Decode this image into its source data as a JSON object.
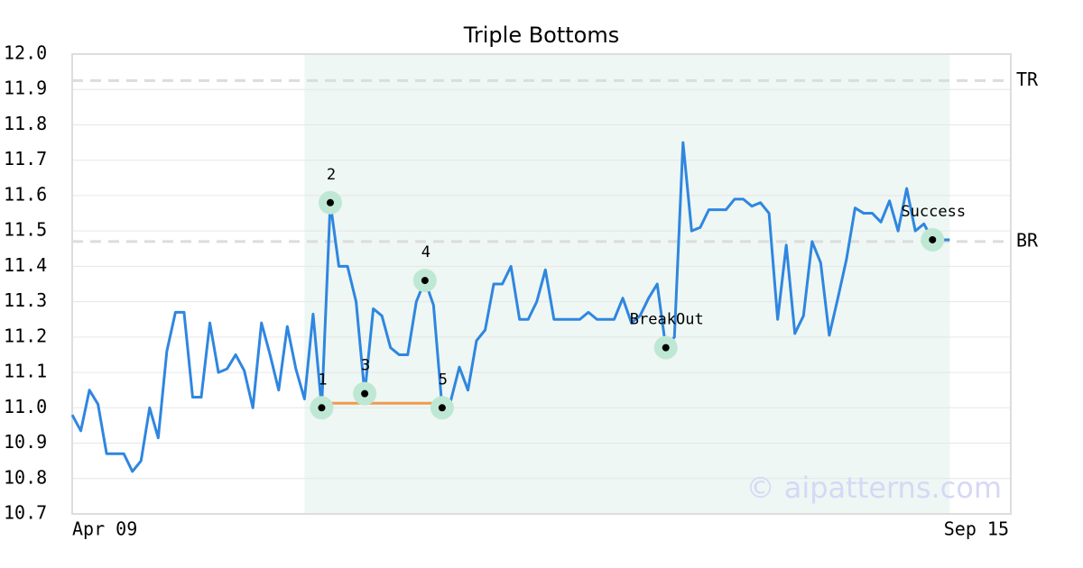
{
  "chart_data": {
    "type": "line",
    "title": "Triple Bottoms",
    "categories": [
      "Apr 09",
      null,
      null,
      null,
      null,
      null,
      null,
      null,
      null,
      null,
      null,
      null,
      null,
      null,
      null,
      null,
      null,
      null,
      null,
      null,
      null,
      null,
      null,
      null,
      null,
      null,
      null,
      null,
      null,
      null,
      null,
      null,
      null,
      null,
      null,
      null,
      null,
      null,
      null,
      null,
      null,
      null,
      null,
      null,
      null,
      null,
      null,
      null,
      null,
      null,
      null,
      null,
      null,
      null,
      null,
      null,
      null,
      null,
      null,
      null,
      null,
      null,
      null,
      null,
      null,
      null,
      null,
      null,
      null,
      null,
      null,
      null,
      null,
      null,
      null,
      null,
      null,
      null,
      null,
      null,
      null,
      null,
      null,
      null,
      null,
      null,
      null,
      null,
      null,
      null,
      null,
      null,
      null,
      null,
      null,
      null,
      null,
      null,
      null,
      null,
      null,
      null,
      "Sep 15"
    ],
    "series": [
      {
        "color": "#2f86e0",
        "values": [
          10.98,
          10.935,
          11.05,
          11.01,
          10.87,
          10.87,
          10.87,
          10.82,
          10.85,
          11.0,
          10.915,
          11.16,
          11.27,
          11.27,
          11.03,
          11.03,
          11.24,
          11.1,
          11.11,
          11.15,
          11.105,
          11.0,
          11.24,
          11.15,
          11.05,
          11.23,
          11.11,
          11.025,
          11.265,
          11.0,
          11.58,
          11.4,
          11.4,
          11.3,
          11.04,
          11.28,
          11.26,
          11.17,
          11.15,
          11.15,
          11.3,
          11.36,
          11.29,
          11.0,
          11.02,
          11.115,
          11.05,
          11.19,
          11.22,
          11.35,
          11.35,
          11.4,
          11.25,
          11.25,
          11.3,
          11.39,
          11.25,
          11.25,
          11.25,
          11.25,
          11.27,
          11.25,
          11.25,
          11.25,
          11.31,
          11.24,
          11.26,
          11.31,
          11.35,
          11.17,
          11.2,
          11.75,
          11.5,
          11.51,
          11.56,
          11.56,
          11.56,
          11.59,
          11.59,
          11.57,
          11.58,
          11.55,
          11.25,
          11.46,
          11.21,
          11.26,
          11.47,
          11.41,
          11.205,
          11.31,
          11.42,
          11.565,
          11.55,
          11.55,
          11.525,
          11.585,
          11.5,
          11.62,
          11.5,
          11.52,
          11.475,
          11.475,
          11.475
        ]
      }
    ],
    "xlim": [
      0,
      109.1
    ],
    "ylim": [
      10.7,
      12.0
    ],
    "yticks": [
      10.7,
      10.8,
      10.9,
      {
        "value": 11.0,
        "label": "11.0"
      },
      11.1,
      11.2,
      11.3,
      11.4,
      11.5,
      11.6,
      11.7,
      11.8,
      11.9,
      {
        "value": 12.0,
        "label": "12.0"
      }
    ],
    "grid": true,
    "shaded_range": [
      27,
      102
    ],
    "shade_color": "#eef7f3",
    "ref_lines": [
      {
        "label": "TR",
        "value": 11.925
      },
      {
        "label": "BR",
        "value": 11.47
      }
    ],
    "support_line": {
      "from": 29,
      "to": 43,
      "value": 11.013,
      "color": "#f09a50"
    },
    "annotations": [
      {
        "text": "1",
        "x": 29,
        "y": 11.0
      },
      {
        "text": "2",
        "x": 30,
        "y": 11.58
      },
      {
        "text": "3",
        "x": 34,
        "y": 11.04
      },
      {
        "text": "4",
        "x": 41,
        "y": 11.36
      },
      {
        "text": "5",
        "x": 43,
        "y": 11.0
      },
      {
        "text": "BreakOut",
        "x": 69,
        "y": 11.17
      },
      {
        "text": "Success",
        "x": 100,
        "y": 11.475
      }
    ],
    "watermark": "© aipatterns.com"
  }
}
